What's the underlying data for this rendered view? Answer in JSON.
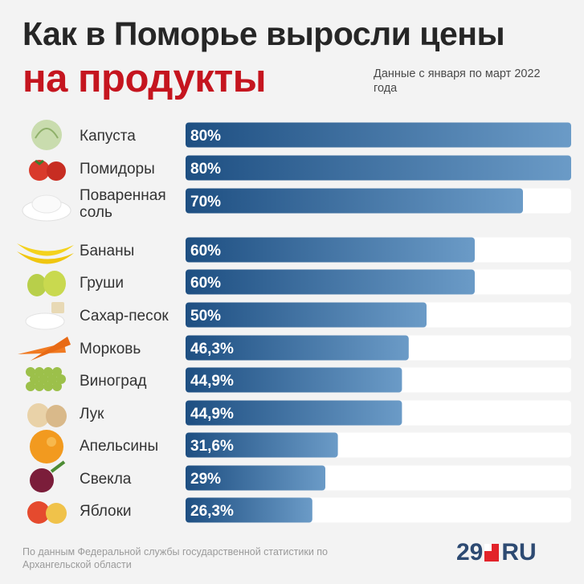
{
  "title_line1": "Как в Поморье выросли цены",
  "title_line2": "на продукты",
  "subtitle": "Данные с января по март 2022 года",
  "source": "По данным Федеральной службы государственной статистики по Архангельской области",
  "logo": {
    "left": "29",
    "right": "RU"
  },
  "colors": {
    "bar_dark": "#1e4f82",
    "bar_light": "#6b9bc7",
    "track": "#ffffff",
    "title_accent": "#c5151f"
  },
  "chart_data": {
    "type": "bar",
    "orientation": "horizontal",
    "xlim": [
      0,
      80
    ],
    "categories": [
      "Капуста",
      "Помидоры",
      "Поваренная соль",
      "Бананы",
      "Груши",
      "Сахар-песок",
      "Морковь",
      "Виноград",
      "Лук",
      "Апельсины",
      "Свекла",
      "Яблоки"
    ],
    "category_lines": [
      [
        "Капуста"
      ],
      [
        "Помидоры"
      ],
      [
        "Поваренная",
        "соль"
      ],
      [
        "Бананы"
      ],
      [
        "Груши"
      ],
      [
        "Сахар-песок"
      ],
      [
        "Морковь"
      ],
      [
        "Виноград"
      ],
      [
        "Лук"
      ],
      [
        "Апельсины"
      ],
      [
        "Свекла"
      ],
      [
        "Яблоки"
      ]
    ],
    "values": [
      80,
      80,
      70,
      60,
      60,
      50,
      46.3,
      44.9,
      44.9,
      31.6,
      29,
      26.3
    ],
    "value_labels": [
      "80%",
      "80%",
      "70%",
      "60%",
      "60%",
      "50%",
      "46,3%",
      "44,9%",
      "44,9%",
      "31,6%",
      "29%",
      "26,3%"
    ],
    "icons": [
      "cabbage-icon",
      "tomato-icon",
      "salt-icon",
      "banana-icon",
      "pear-icon",
      "sugar-icon",
      "carrot-icon",
      "grape-icon",
      "onion-icon",
      "orange-icon",
      "beet-icon",
      "apple-icon"
    ]
  }
}
